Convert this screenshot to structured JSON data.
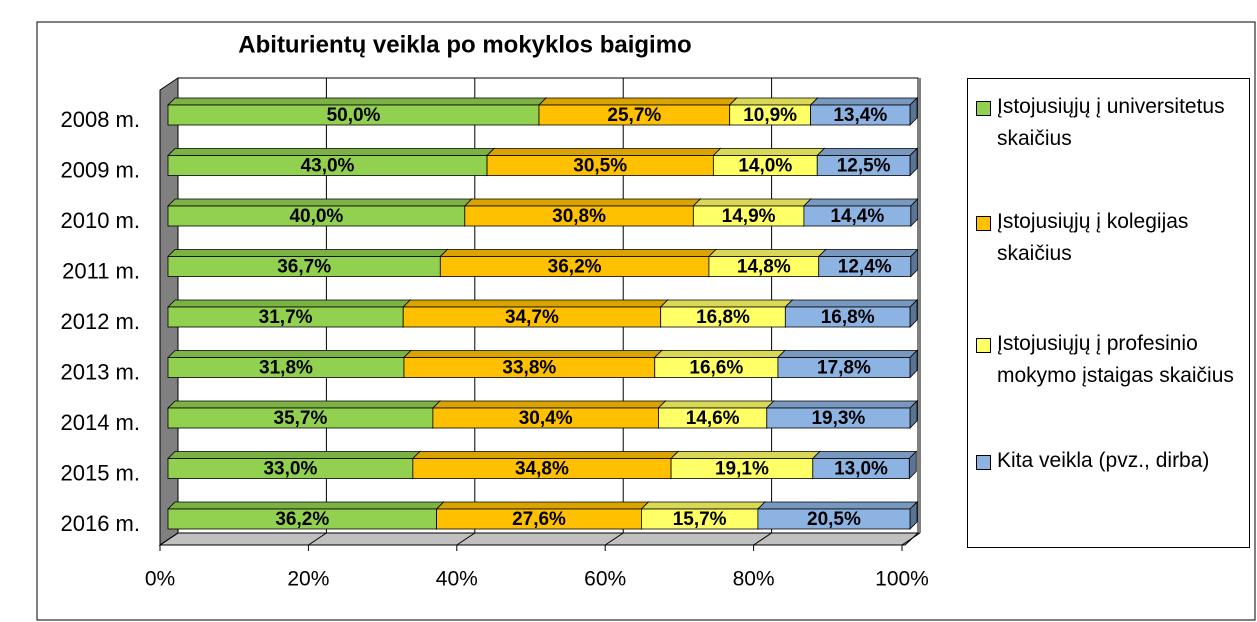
{
  "chart_data": {
    "type": "bar",
    "orientation": "horizontal",
    "stacked": true,
    "title": "Abiturientų veikla po mokyklos baigimo",
    "categories": [
      "2008 m.",
      "2009 m.",
      "2010 m.",
      "2011 m.",
      "2012 m.",
      "2013 m.",
      "2014 m.",
      "2015 m.",
      "2016 m."
    ],
    "series": [
      {
        "name": "Įstojusiųjų į universitetus skaičius",
        "color": "#92d050",
        "values": [
          50.0,
          43.0,
          40.0,
          36.7,
          31.7,
          31.8,
          35.7,
          33.0,
          36.2
        ],
        "value_labels": [
          "50,0%",
          "43,0%",
          "40,0%",
          "36,7%",
          "31,7%",
          "31,8%",
          "35,7%",
          "33,0%",
          "36,2%"
        ]
      },
      {
        "name": "Įstojusiųjų į kolegijas skaičius",
        "color": "#ffc000",
        "values": [
          25.7,
          30.5,
          30.8,
          36.2,
          34.7,
          33.8,
          30.4,
          34.8,
          27.6
        ],
        "value_labels": [
          "25,7%",
          "30,5%",
          "30,8%",
          "36,2%",
          "34,7%",
          "33,8%",
          "30,4%",
          "34,8%",
          "27,6%"
        ]
      },
      {
        "name": "Įstojusiųjų į profesinio mokymo įstaigas skaičius",
        "color": "#ffff66",
        "values": [
          10.9,
          14.0,
          14.9,
          14.8,
          16.8,
          16.6,
          14.6,
          19.1,
          15.7
        ],
        "value_labels": [
          "10,9%",
          "14,0%",
          "14,9%",
          "14,8%",
          "16,8%",
          "16,6%",
          "14,6%",
          "19,1%",
          "15,7%"
        ]
      },
      {
        "name": "Kita veikla  (pvz., dirba)",
        "color": "#8db3e2",
        "values": [
          13.4,
          12.5,
          14.4,
          12.4,
          16.8,
          17.8,
          19.3,
          13.0,
          20.5
        ],
        "value_labels": [
          "13,4%",
          "12,5%",
          "14,4%",
          "12,4%",
          "16,8%",
          "17,8%",
          "19,3%",
          "13,0%",
          "20,5%"
        ]
      }
    ],
    "xlim": [
      0,
      100
    ],
    "xticks": [
      {
        "value": 0,
        "label": "0%"
      },
      {
        "value": 20,
        "label": "20%"
      },
      {
        "value": 40,
        "label": "40%"
      },
      {
        "value": 60,
        "label": "60%"
      },
      {
        "value": 80,
        "label": "80%"
      },
      {
        "value": 100,
        "label": "100%"
      }
    ],
    "grid": true,
    "legend": "right"
  }
}
